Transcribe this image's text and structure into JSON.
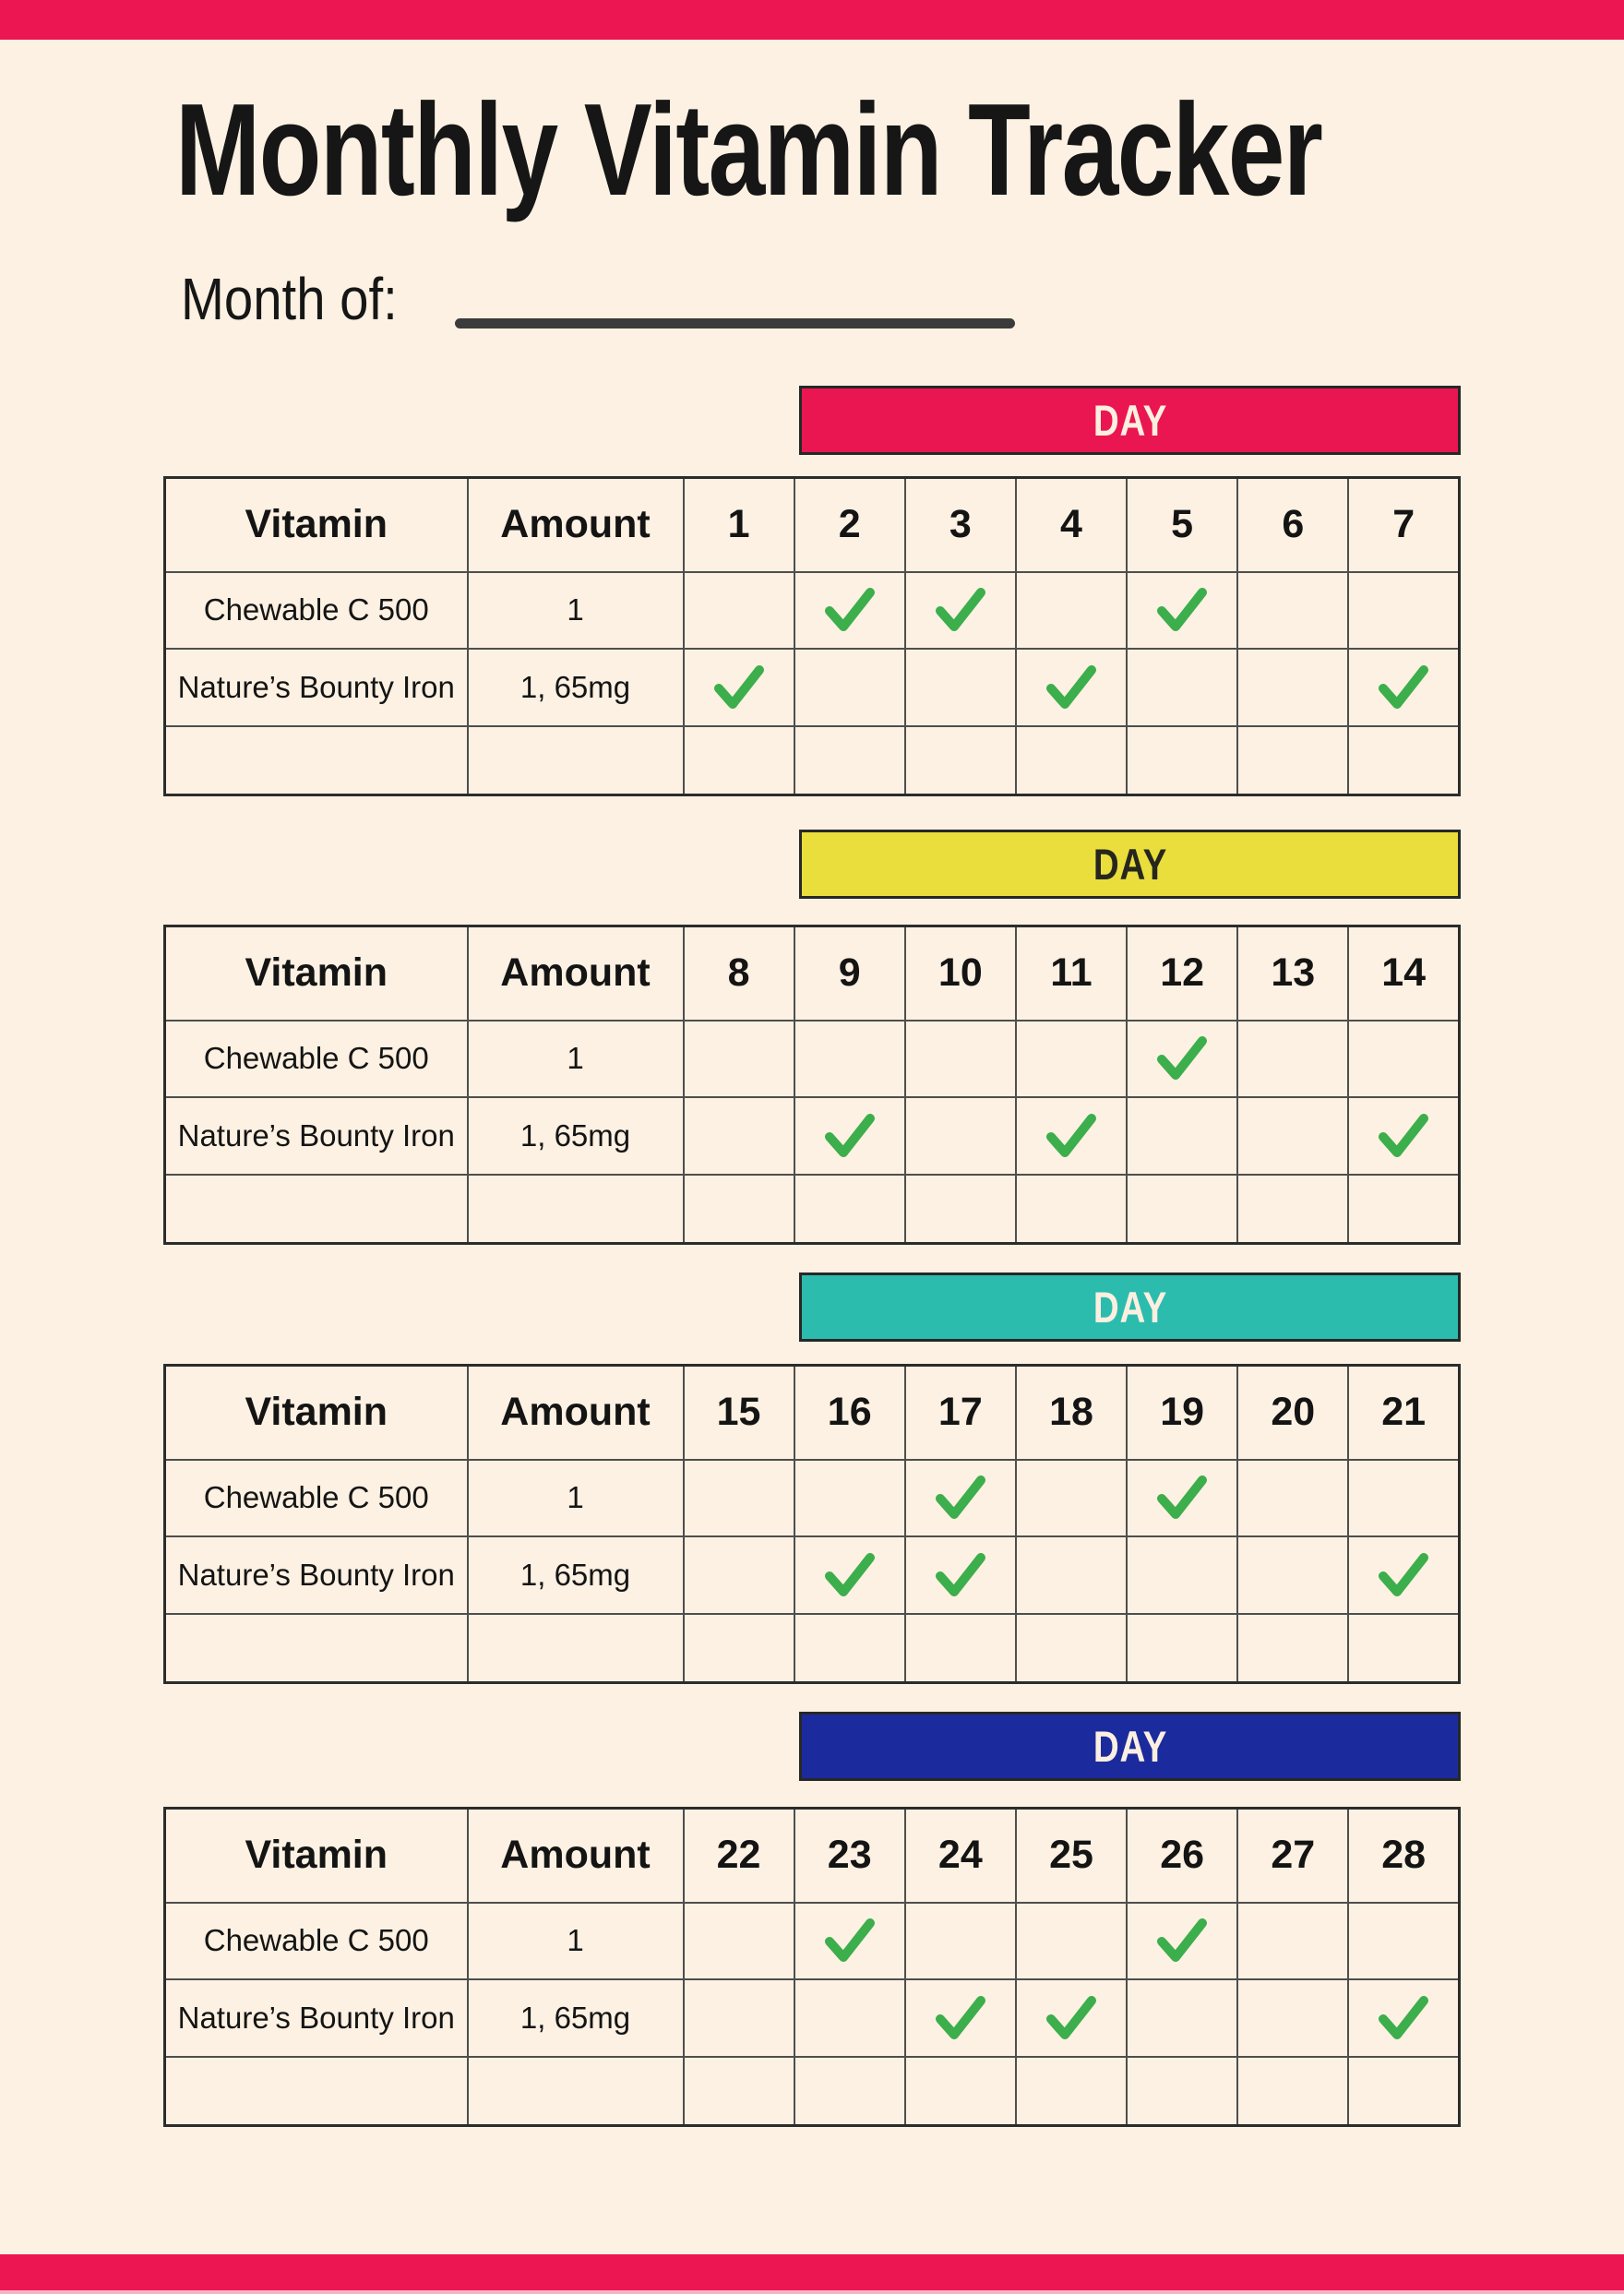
{
  "page": {
    "title": "Monthly Vitamin Tracker",
    "month_of_label": "Month of:",
    "day_banner_label": "DAY",
    "vitamin_header": "Vitamin",
    "amount_header": "Amount"
  },
  "colors": {
    "background": "#FCF1E2",
    "accent_bar": "#EC1652",
    "check_green": "#3CAE4C",
    "grid_line": "#4E4E4E"
  },
  "weeks": [
    {
      "banner_color": "#EA1651",
      "banner_text_color": "#FCEFE0",
      "days": [
        "1",
        "2",
        "3",
        "4",
        "5",
        "6",
        "7"
      ],
      "rows": [
        {
          "vitamin": "Chewable C 500",
          "amount": "1",
          "checks": [
            0,
            1,
            1,
            0,
            1,
            0,
            0
          ]
        },
        {
          "vitamin": "Nature’s Bounty Iron",
          "amount": "1, 65mg",
          "checks": [
            1,
            0,
            0,
            1,
            0,
            0,
            1
          ]
        },
        {
          "vitamin": "",
          "amount": "",
          "checks": [
            0,
            0,
            0,
            0,
            0,
            0,
            0
          ]
        }
      ]
    },
    {
      "banner_color": "#E9DE3B",
      "banner_text_color": "#26261E",
      "days": [
        "8",
        "9",
        "10",
        "11",
        "12",
        "13",
        "14"
      ],
      "rows": [
        {
          "vitamin": "Chewable C 500",
          "amount": "1",
          "checks": [
            0,
            0,
            0,
            0,
            1,
            0,
            0
          ]
        },
        {
          "vitamin": "Nature’s Bounty Iron",
          "amount": "1, 65mg",
          "checks": [
            0,
            1,
            0,
            1,
            0,
            0,
            1
          ]
        },
        {
          "vitamin": "",
          "amount": "",
          "checks": [
            0,
            0,
            0,
            0,
            0,
            0,
            0
          ]
        }
      ]
    },
    {
      "banner_color": "#2BBCAE",
      "banner_text_color": "#FCEFE0",
      "days": [
        "15",
        "16",
        "17",
        "18",
        "19",
        "20",
        "21"
      ],
      "rows": [
        {
          "vitamin": "Chewable C 500",
          "amount": "1",
          "checks": [
            0,
            0,
            1,
            0,
            1,
            0,
            0
          ]
        },
        {
          "vitamin": "Nature’s Bounty Iron",
          "amount": "1, 65mg",
          "checks": [
            0,
            1,
            1,
            0,
            0,
            0,
            1
          ]
        },
        {
          "vitamin": "",
          "amount": "",
          "checks": [
            0,
            0,
            0,
            0,
            0,
            0,
            0
          ]
        }
      ]
    },
    {
      "banner_color": "#1B2B9D",
      "banner_text_color": "#FCEFE0",
      "days": [
        "22",
        "23",
        "24",
        "25",
        "26",
        "27",
        "28"
      ],
      "rows": [
        {
          "vitamin": "Chewable C 500",
          "amount": "1",
          "checks": [
            0,
            1,
            0,
            0,
            1,
            0,
            0
          ]
        },
        {
          "vitamin": "Nature’s Bounty Iron",
          "amount": "1, 65mg",
          "checks": [
            0,
            0,
            1,
            1,
            0,
            0,
            1
          ]
        },
        {
          "vitamin": "",
          "amount": "",
          "checks": [
            0,
            0,
            0,
            0,
            0,
            0,
            0
          ]
        }
      ]
    }
  ]
}
